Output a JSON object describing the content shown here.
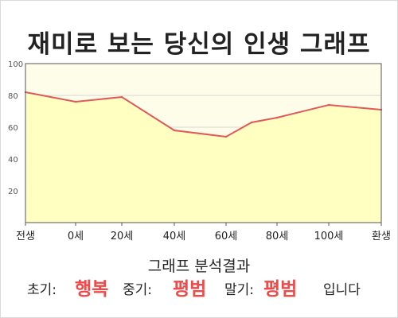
{
  "chart_data": {
    "type": "area",
    "title": "재미로 보는 당신의 인생 그래프",
    "x_categories": [
      "전생",
      "0세",
      "20세",
      "40세",
      "60세",
      "80세",
      "100세",
      "환생"
    ],
    "points": [
      {
        "x": "전생",
        "y": 82
      },
      {
        "x": "0세",
        "y": 76
      },
      {
        "x": "20세",
        "y": 79
      },
      {
        "x": "40세",
        "y": 58
      },
      {
        "x": "60세",
        "y": 54
      },
      {
        "x": "70세",
        "y": 63
      },
      {
        "x": "80세",
        "y": 66
      },
      {
        "x": "100세",
        "y": 74
      },
      {
        "x": "환생",
        "y": 71
      }
    ],
    "ylim": [
      0,
      100
    ],
    "yticks": [
      20,
      40,
      60,
      80,
      100
    ],
    "grid": true,
    "colors": {
      "line": "#e05a5a",
      "fill": "#ffffc0",
      "background": "#fdfdea",
      "grid": "#d8d8d8"
    }
  },
  "analysis": {
    "heading": "그래프 분석결과",
    "early_label": "초기:",
    "early_value": "행복",
    "mid_label": "중기:",
    "mid_value": "평범",
    "late_label": "말기:",
    "late_value": "평범",
    "suffix": "입니다"
  }
}
